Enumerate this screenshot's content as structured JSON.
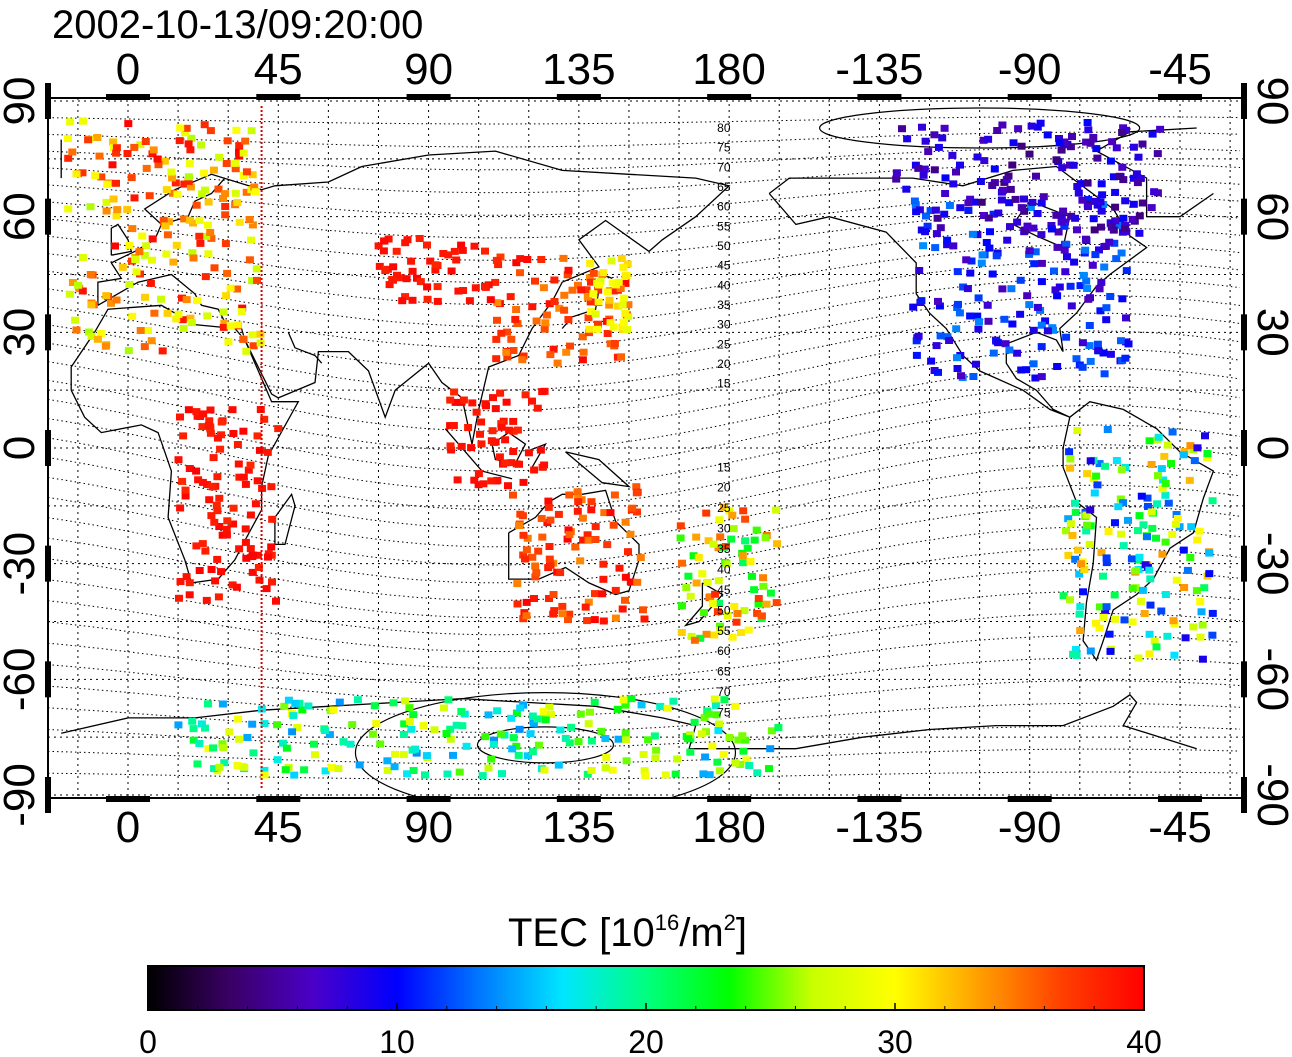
{
  "title": "2002-10-13/09:20:00",
  "map": {
    "lon_ticks": [
      "0",
      "45",
      "90",
      "135",
      "180",
      "-135",
      "-90",
      "-45"
    ],
    "lat_ticks_left": [
      "90",
      "60",
      "30",
      "0",
      "-30",
      "-60",
      "-90"
    ],
    "lat_ticks_right": [
      "90",
      "60",
      "30",
      "0",
      "-30",
      "-60",
      "-90"
    ],
    "marker_lon": 40,
    "marker_color": "#e00000"
  },
  "contours_north": [
    "80",
    "75",
    "70",
    "65",
    "60",
    "55",
    "50",
    "45",
    "40",
    "35",
    "30",
    "25",
    "20",
    "15"
  ],
  "contours_south": [
    "15",
    "20",
    "25",
    "30",
    "35",
    "40",
    "45",
    "50",
    "55",
    "60",
    "65",
    "70",
    "75"
  ],
  "colorbar": {
    "label_main": "TEC  [10",
    "label_sup1": "16",
    "label_mid": "/m",
    "label_sup2": "2",
    "label_end": "]",
    "ticks": [
      "0",
      "10",
      "20",
      "30",
      "40"
    ],
    "range": [
      0,
      40
    ],
    "colormap": [
      "#000000",
      "#3b0066",
      "#4a00c8",
      "#0000ff",
      "#0078ff",
      "#00e6ff",
      "#00ff80",
      "#00ff00",
      "#c8ff00",
      "#ffff00",
      "#ffa000",
      "#ff4000",
      "#ff0000"
    ]
  },
  "tec_regions": [
    {
      "name": "europe",
      "lon": [
        -18,
        40
      ],
      "lat": [
        25,
        85
      ],
      "tec": [
        26,
        40
      ]
    },
    {
      "name": "asia-east",
      "lon": [
        110,
        150
      ],
      "lat": [
        22,
        50
      ],
      "tec": [
        34,
        40
      ]
    },
    {
      "name": "japan",
      "lon": [
        138,
        150
      ],
      "lat": [
        30,
        50
      ],
      "tec": [
        28,
        32
      ]
    },
    {
      "name": "north-america",
      "lon": [
        -125,
        -60
      ],
      "lat": [
        18,
        65
      ],
      "tec": [
        6,
        14
      ]
    },
    {
      "name": "canada-north",
      "lon": [
        -130,
        -50
      ],
      "lat": [
        55,
        85
      ],
      "tec": [
        4,
        10
      ]
    },
    {
      "name": "south-america",
      "lon": [
        -80,
        -35
      ],
      "lat": [
        -55,
        5
      ],
      "tec": [
        8,
        34
      ]
    },
    {
      "name": "australia",
      "lon": [
        115,
        155
      ],
      "lat": [
        -45,
        -10
      ],
      "tec": [
        34,
        40
      ]
    },
    {
      "name": "nz-pacific",
      "lon": [
        165,
        195
      ],
      "lat": [
        -50,
        -15
      ],
      "tec": [
        20,
        38
      ]
    },
    {
      "name": "antarctica",
      "lon": [
        15,
        195
      ],
      "lat": [
        -85,
        -65
      ],
      "tec": [
        14,
        30
      ]
    },
    {
      "name": "africa",
      "lon": [
        15,
        45
      ],
      "lat": [
        -40,
        10
      ],
      "tec": [
        38,
        40
      ]
    },
    {
      "name": "siberia",
      "lon": [
        75,
        110
      ],
      "lat": [
        38,
        55
      ],
      "tec": [
        38,
        40
      ]
    },
    {
      "name": "indonesia",
      "lon": [
        95,
        125
      ],
      "lat": [
        -10,
        15
      ],
      "tec": [
        38,
        40
      ]
    }
  ]
}
